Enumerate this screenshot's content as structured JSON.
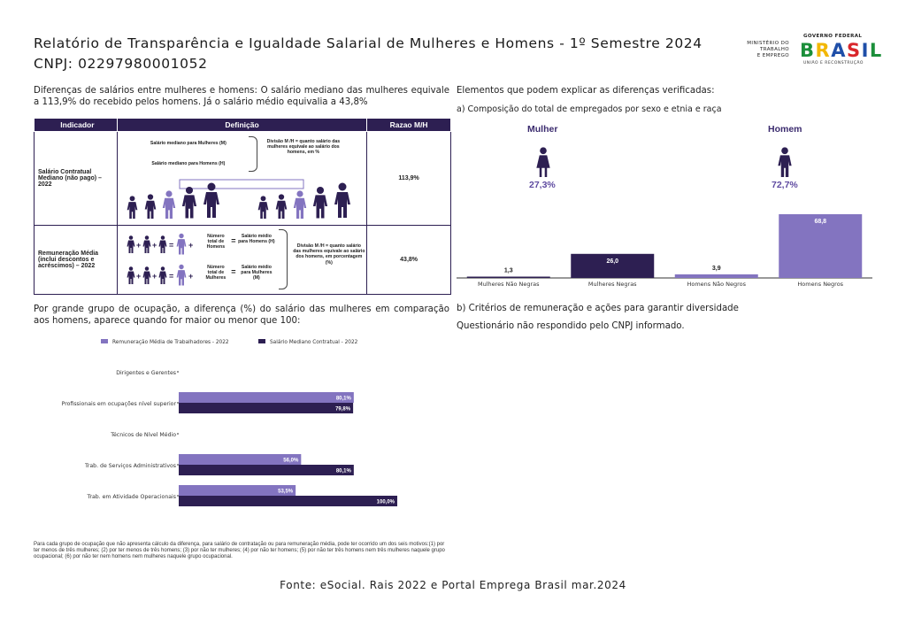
{
  "header": {
    "title_line1": "Relatório de Transparência e Igualdade Salarial de Mulheres e Homens - 1º Semestre 2024",
    "title_line2": "CNPJ: 02297980001052"
  },
  "logo": {
    "ministry": [
      "MINISTÉRIO DO",
      "TRABALHO",
      "E EMPREGO"
    ],
    "gov": "GOVERNO FEDERAL",
    "brasil_letters": [
      "B",
      "R",
      "A",
      "S",
      "I",
      "L"
    ],
    "tagline": "UNIÃO E RECONSTRUÇÃO"
  },
  "intro": "Diferenças de salários entre mulheres e homens: O salário mediano das mulheres equivale a 113,9% do recebido pelos homens. Já o salário médio equivalia a 43,8%",
  "table": {
    "headers": [
      "Indicador",
      "Definição",
      "Razao M/H"
    ],
    "row1": {
      "indicator": "Salário Contratual Mediano (não pago) – 2022",
      "def_women": "Salário mediano para Mulheres (M)",
      "def_men": "Salário mediano para Homens (H)",
      "def_div": "Divisão M /H = quanto salário das mulheres equivale ao salário dos homens, em %",
      "ratio": "113,9%"
    },
    "row2": {
      "indicator": "Remuneração Média (inclui descontos e acréscimos) – 2022",
      "n_men": "Número total de Homens",
      "avg_men": "Salário médio para Homens (H)",
      "n_women": "Número total de Mulheres",
      "avg_women": "Salário médio para Mulheres (M)",
      "def_div": "Divisão M /H = quanto salário das mulheres equivale ao salário dos homens, em porcentagem (%)",
      "ratio": "43,8%"
    }
  },
  "composition": {
    "heading": "Elementos que podem explicar as diferenças verificadas:",
    "subtitle": "a) Composição do total de empregados por sexo e etnia e raça",
    "women_label": "Mulher",
    "women_pct": "27,3%",
    "men_label": "Homem",
    "men_pct": "72,7%"
  },
  "section2_text": "Por grande grupo de ocupação, a diferença (%) do salário das mulheres em comparação aos homens, aparece quando for maior ou menor que 100:",
  "section3": {
    "title": "b) Critérios de remuneração e ações para garantir diversidade",
    "text": "Questionário não respondido pelo CNPJ informado."
  },
  "note": "Para cada grupo de ocupação que não apresenta cálculo da diferença, para salário de contratação ou para remuneração média, pode ter ocorrido um dos seis motivos:(1) por ter menos de três mulheres; (2) por ter menos de três homens; (3) por não ter mulheres; (4) por não ter homens; (5) por não ter três homens nem três mulheres naquele grupo ocupacional; (6) por não ter nem homens nem mulheres naquele grupo ocupacional.",
  "source": "Fonte: eSocial. Rais 2022 e Portal Emprega Brasil mar.2024",
  "colors": {
    "dark": "#2d1f52",
    "light": "#8374c0",
    "accent": "#5e4aa0"
  },
  "chart_data": [
    {
      "type": "bar",
      "categories": [
        "Mulheres Não Negras",
        "Mulheres Negras",
        "Homens Não Negros",
        "Homens Negros"
      ],
      "series": [
        {
          "values": [
            1.3,
            26.0,
            3.9,
            68.8
          ]
        }
      ],
      "value_labels": [
        "1,3",
        "26,0",
        "3,9",
        "68,8"
      ],
      "colors": [
        "#2d1f52",
        "#2d1f52",
        "#8374c0",
        "#8374c0"
      ],
      "ylim": [
        0,
        75
      ]
    },
    {
      "type": "bar",
      "orientation": "horizontal",
      "categories": [
        "Dirigentes e Gerentes",
        "Profissionais em ocupações nível superior",
        "Técnicos de Nível Médio",
        "Trab. de Serviços Administrativos",
        "Trab. em Atividade Operacionais"
      ],
      "series": [
        {
          "name": "Remuneração Média de Trabalhadores - 2022",
          "values": [
            null,
            80.1,
            null,
            56.0,
            53.5
          ],
          "labels": [
            "",
            "80,1%",
            "",
            "56,0%",
            "53,5%"
          ]
        },
        {
          "name": "Salário Mediano Contratual - 2022",
          "values": [
            null,
            79.8,
            null,
            80.1,
            100.0
          ],
          "labels": [
            "",
            "79,8%",
            "",
            "80,1%",
            "100,0%"
          ]
        }
      ],
      "xlim": [
        0,
        100
      ],
      "legend": "top"
    }
  ]
}
